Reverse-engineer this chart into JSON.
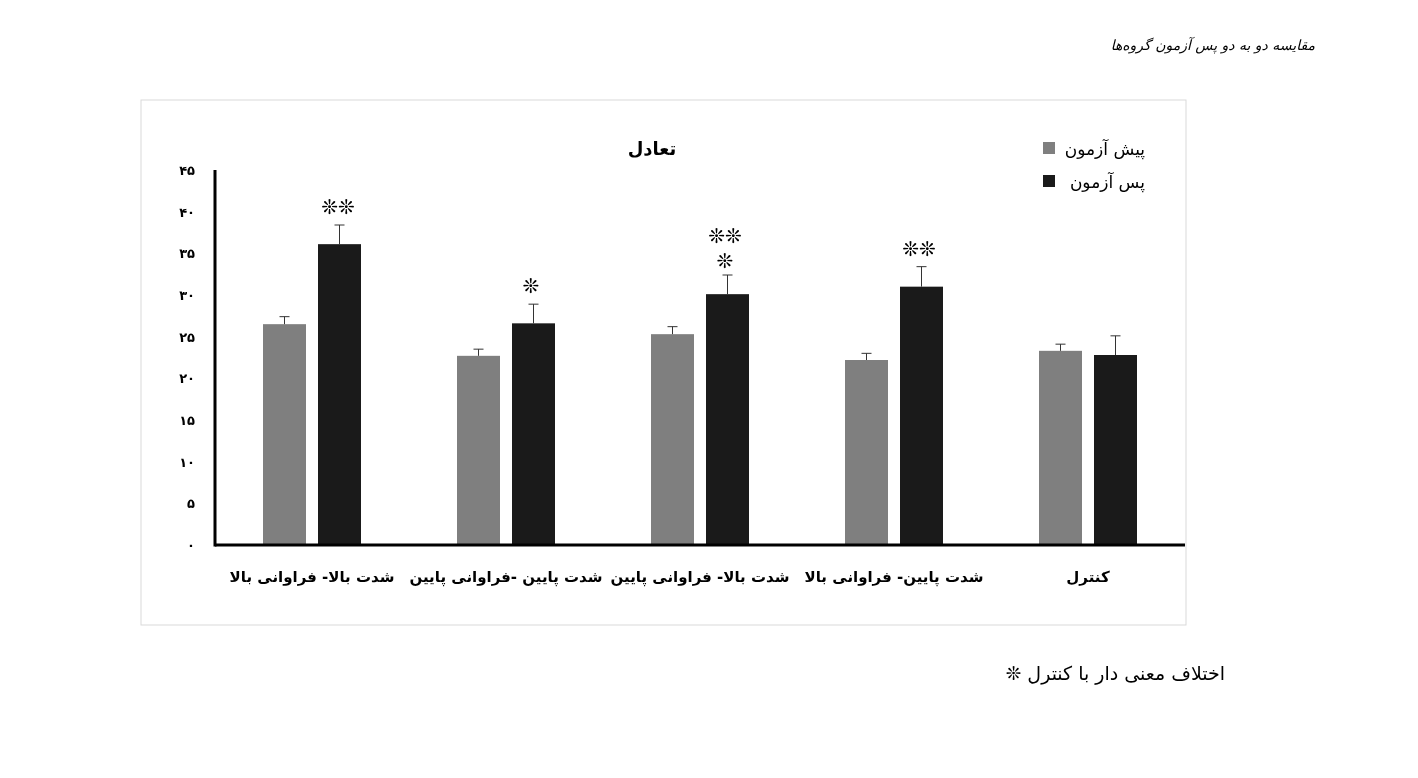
{
  "chart_data": {
    "type": "bar",
    "title": "تعادل",
    "categories": [
      "شدت بالا- فراوانی بالا",
      "شدت پایین -فراوانی پایین",
      "شدت بالا- فراوانی پایین",
      "شدت پایین- فراوانی بالا",
      "کنترل"
    ],
    "series": [
      {
        "name": "پیش آزمون",
        "color": "#7f7f7f",
        "values": [
          26.5,
          22.7,
          25.3,
          22.2,
          23.3
        ],
        "errors": [
          [
            26.5,
            27.4
          ],
          [
            22.7,
            23.5
          ],
          [
            25.3,
            26.2
          ],
          [
            22.2,
            23.0
          ],
          [
            23.3,
            24.1
          ]
        ]
      },
      {
        "name": "پس آزمون",
        "color": "#1a1a1a",
        "values": [
          36.1,
          26.6,
          30.1,
          31.0,
          22.8
        ],
        "errors": [
          [
            36.1,
            38.4
          ],
          [
            26.6,
            28.9
          ],
          [
            30.1,
            32.4
          ],
          [
            31.0,
            33.4
          ],
          [
            22.8,
            25.1
          ]
        ]
      }
    ],
    "ylim": [
      0,
      45
    ],
    "yticks": [
      {
        "value": 0,
        "label": "۰"
      },
      {
        "value": 5,
        "label": "۵"
      },
      {
        "value": 10,
        "label": "۱۰"
      },
      {
        "value": 15,
        "label": "۱۵"
      },
      {
        "value": 20,
        "label": "۲۰"
      },
      {
        "value": 25,
        "label": "۲۵"
      },
      {
        "value": 30,
        "label": "۳۰"
      },
      {
        "value": 35,
        "label": "۳۵"
      },
      {
        "value": 40,
        "label": "۴۰"
      },
      {
        "value": 45,
        "label": "۴۵"
      }
    ],
    "grid": false,
    "legend": "top right",
    "annotations": [
      "❊❊",
      "❊",
      "❊❊",
      "❊",
      "❊❊",
      "مقایسه دو به دو پس آزمون گروه‌ها",
      "❊ اختلاف معنی دار با کنترل"
    ]
  }
}
